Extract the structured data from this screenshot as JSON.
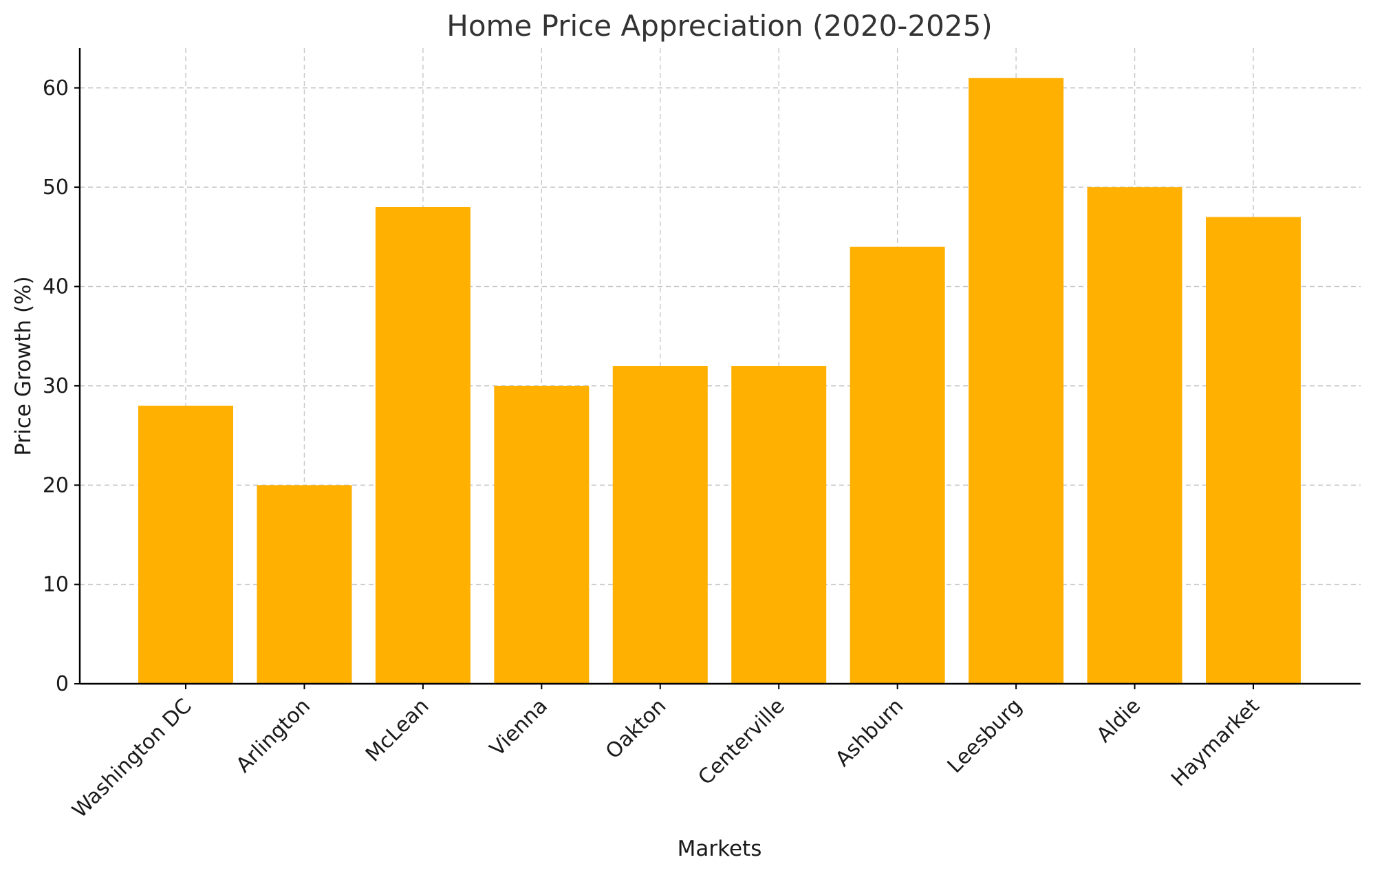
{
  "chart_data": {
    "type": "bar",
    "title": "Home Price Appreciation (2020-2025)",
    "xlabel": "Markets",
    "ylabel": "Price Growth (%)",
    "categories": [
      "Washington DC",
      "Arlington",
      "McLean",
      "Vienna",
      "Oakton",
      "Centerville",
      "Ashburn",
      "Leesburg",
      "Aldie",
      "Haymarket"
    ],
    "values": [
      28,
      20,
      48,
      30,
      32,
      32,
      44,
      61,
      50,
      47
    ],
    "ylim": [
      0,
      64
    ],
    "yticks": [
      0,
      10,
      20,
      30,
      40,
      50,
      60
    ],
    "grid": true,
    "legend": "none",
    "bar_color": "#FFB000"
  }
}
